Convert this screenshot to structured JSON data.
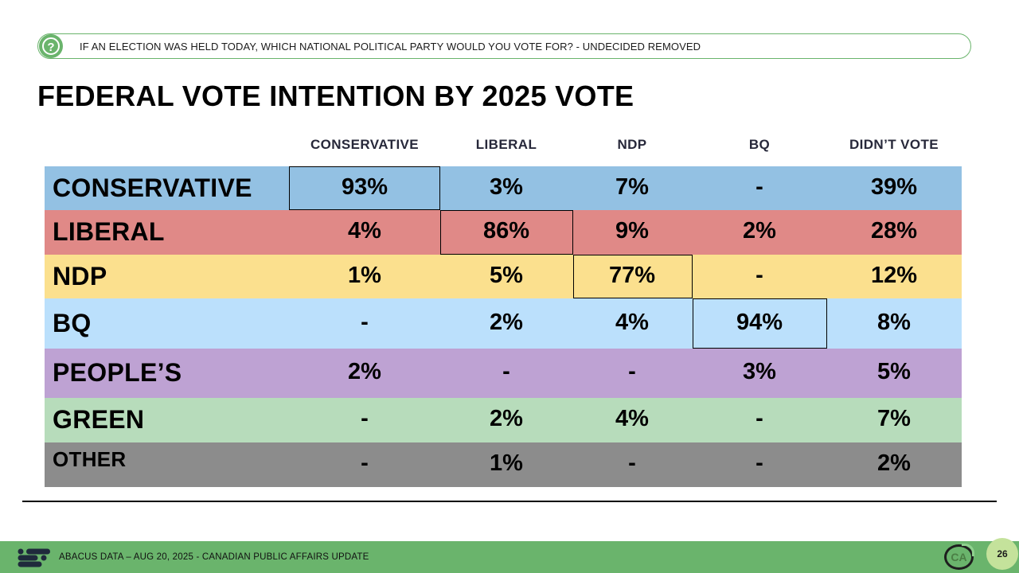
{
  "question": "IF AN ELECTION WAS HELD TODAY, WHICH NATIONAL POLITICAL PARTY WOULD YOU VOTE FOR? - UNDECIDED REMOVED",
  "title": "FEDERAL VOTE INTENTION BY 2025 VOTE",
  "footer": {
    "source": "ABACUS DATA – AUG 20, 2025 - CANADIAN PUBLIC AFFAIRS UPDATE",
    "badge": "CA",
    "page_number": "26"
  },
  "colors": {
    "brand_green": "#6ab46c",
    "conservative": "#93c1e3",
    "liberal": "#e08987",
    "ndp": "#fbe08e",
    "bq": "#bbe0fc",
    "peoples": "#bea2d3",
    "green": "#b7dcbb",
    "other": "#8c8c8c"
  },
  "chart_data": {
    "type": "table",
    "title": "FEDERAL VOTE INTENTION BY 2025 VOTE",
    "columns": [
      "CONSERVATIVE",
      "LIBERAL",
      "NDP",
      "BQ",
      "DIDN’T VOTE"
    ],
    "rows": [
      {
        "label": "CONSERVATIVE",
        "color": "#93c1e3",
        "values": [
          "93%",
          "3%",
          "7%",
          "-",
          "39%"
        ]
      },
      {
        "label": "LIBERAL",
        "color": "#e08987",
        "values": [
          "4%",
          "86%",
          "9%",
          "2%",
          "28%"
        ]
      },
      {
        "label": "NDP",
        "color": "#fbe08e",
        "values": [
          "1%",
          "5%",
          "77%",
          "-",
          "12%"
        ]
      },
      {
        "label": "BQ",
        "color": "#bbe0fc",
        "values": [
          "-",
          "2%",
          "4%",
          "94%",
          "8%"
        ]
      },
      {
        "label": "PEOPLE’S",
        "color": "#bea2d3",
        "values": [
          "2%",
          "-",
          "-",
          "3%",
          "5%"
        ]
      },
      {
        "label": "GREEN",
        "color": "#b7dcbb",
        "values": [
          "-",
          "2%",
          "4%",
          "-",
          "7%"
        ]
      },
      {
        "label": "OTHER",
        "color": "#8c8c8c",
        "values": [
          "-",
          "1%",
          "-",
          "-",
          "2%"
        ]
      }
    ],
    "highlighted_diagonal": [
      [
        0,
        0
      ],
      [
        1,
        1
      ],
      [
        2,
        2
      ],
      [
        3,
        3
      ]
    ]
  }
}
